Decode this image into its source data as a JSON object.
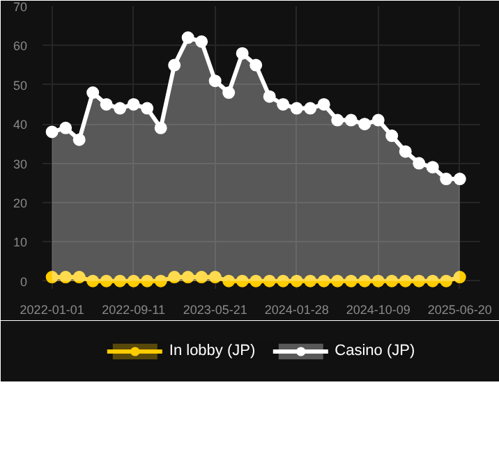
{
  "chart_data": {
    "type": "area",
    "categories": [
      "2022-01-01",
      null,
      null,
      null,
      null,
      null,
      "2022-09-11",
      null,
      null,
      null,
      null,
      null,
      "2023-05-21",
      null,
      null,
      null,
      null,
      null,
      "2024-01-28",
      null,
      null,
      null,
      null,
      null,
      "2024-10-09",
      null,
      null,
      null,
      null,
      null,
      "2025-06-20"
    ],
    "series": [
      {
        "name": "In lobby (JP)",
        "color": "#ffcc00",
        "values": [
          1,
          1,
          1,
          0,
          0,
          0,
          0,
          0,
          0,
          1,
          1,
          1,
          1,
          0,
          0,
          0,
          0,
          0,
          0,
          0,
          0,
          0,
          0,
          0,
          0,
          0,
          0,
          0,
          0,
          0,
          1
        ]
      },
      {
        "name": "Casino (JP)",
        "color": "#ffffff",
        "values": [
          38,
          39,
          36,
          48,
          45,
          44,
          45,
          44,
          39,
          55,
          62,
          61,
          51,
          48,
          58,
          55,
          47,
          45,
          44,
          44,
          45,
          41,
          41,
          40,
          41,
          37,
          33,
          30,
          29,
          26,
          26
        ]
      }
    ],
    "ylim": [
      -2,
      70
    ],
    "yticks": [
      0,
      10,
      20,
      30,
      40,
      50,
      60,
      70
    ],
    "grid": true,
    "legend": "bottom",
    "marker": "circle",
    "line_style": "solid"
  }
}
